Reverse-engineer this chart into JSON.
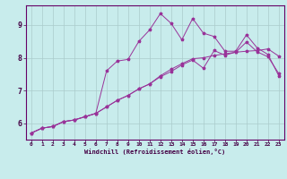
{
  "xlabel": "Windchill (Refroidissement éolien,°C)",
  "background_color": "#c8ecec",
  "line_color": "#993399",
  "grid_color": "#aacccc",
  "xlim": [
    -0.5,
    23.5
  ],
  "ylim": [
    5.5,
    9.6
  ],
  "xticks": [
    0,
    1,
    2,
    3,
    4,
    5,
    6,
    7,
    8,
    9,
    10,
    11,
    12,
    13,
    14,
    15,
    16,
    17,
    18,
    19,
    20,
    21,
    22,
    23
  ],
  "yticks": [
    6,
    7,
    8,
    9
  ],
  "series": [
    {
      "x": [
        0,
        1,
        2,
        3,
        4,
        5,
        6,
        7,
        8,
        9,
        10,
        11,
        12,
        13,
        14,
        15,
        16,
        17,
        18,
        19,
        20,
        21,
        22,
        23
      ],
      "y": [
        5.7,
        5.85,
        5.9,
        6.05,
        6.1,
        6.2,
        6.3,
        7.6,
        7.9,
        7.95,
        8.5,
        8.85,
        9.35,
        9.05,
        8.55,
        9.2,
        8.75,
        8.65,
        8.2,
        8.2,
        8.7,
        8.3,
        8.1,
        7.45
      ]
    },
    {
      "x": [
        0,
        1,
        2,
        3,
        4,
        5,
        6,
        7,
        8,
        9,
        10,
        11,
        12,
        13,
        14,
        15,
        16,
        17,
        18,
        19,
        20,
        21,
        22,
        23
      ],
      "y": [
        5.7,
        5.85,
        5.9,
        6.05,
        6.1,
        6.2,
        6.3,
        6.5,
        6.7,
        6.85,
        7.05,
        7.2,
        7.45,
        7.65,
        7.82,
        7.97,
        8.0,
        8.07,
        8.12,
        8.17,
        8.2,
        8.22,
        8.27,
        8.05
      ]
    },
    {
      "x": [
        0,
        1,
        2,
        3,
        4,
        5,
        6,
        7,
        8,
        9,
        10,
        11,
        12,
        13,
        14,
        15,
        16,
        17,
        18,
        19,
        20,
        21,
        22,
        23
      ],
      "y": [
        5.7,
        5.85,
        5.9,
        6.05,
        6.1,
        6.2,
        6.3,
        6.5,
        6.7,
        6.85,
        7.05,
        7.2,
        7.42,
        7.58,
        7.78,
        7.93,
        7.68,
        8.22,
        8.08,
        8.17,
        8.48,
        8.18,
        8.03,
        7.52
      ]
    }
  ]
}
